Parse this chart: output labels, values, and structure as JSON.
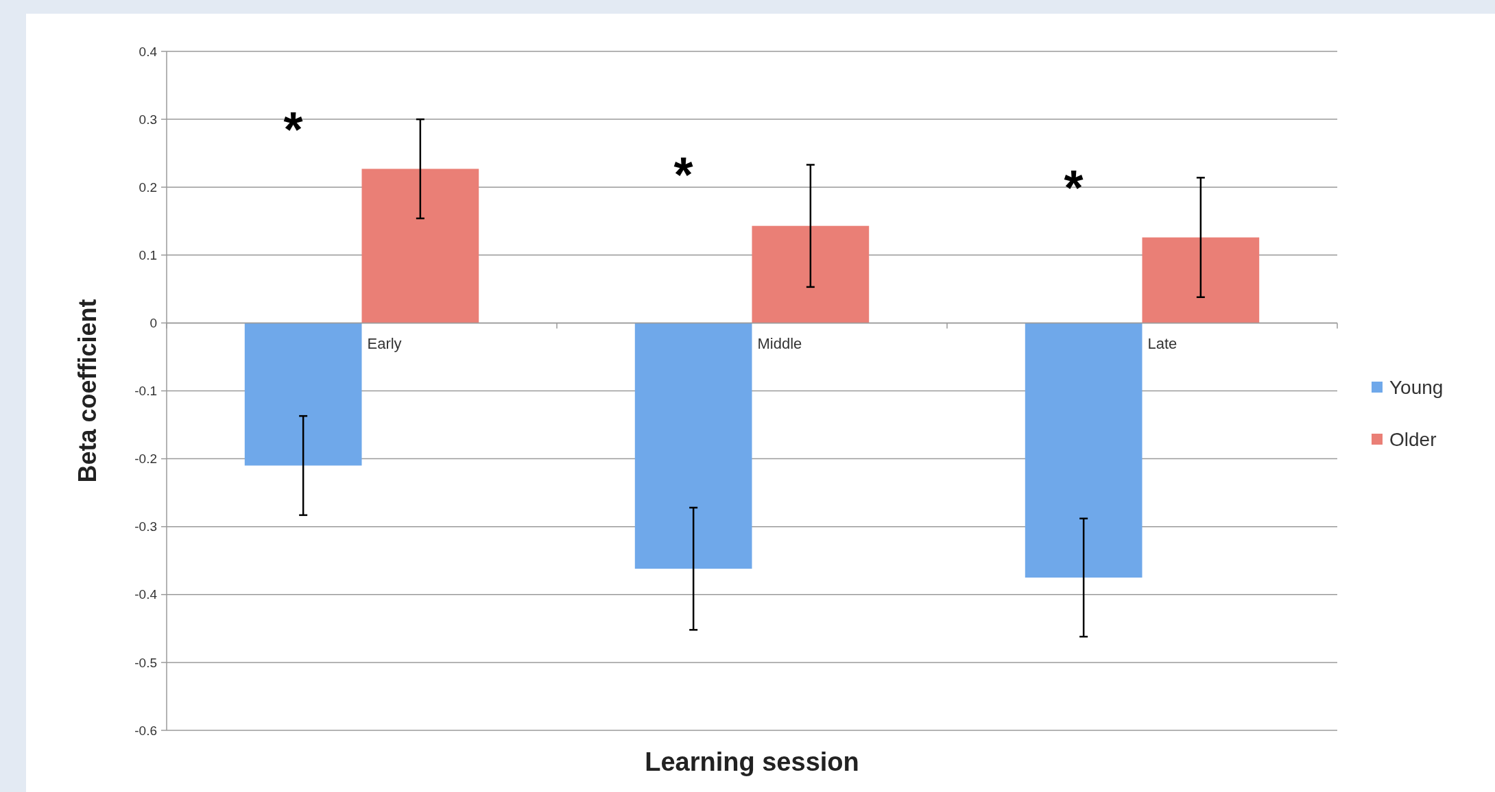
{
  "chart_data": {
    "type": "bar",
    "xlabel": "Learning session",
    "ylabel": "Beta coefficient",
    "categories": [
      "Early",
      "Middle",
      "Late"
    ],
    "series": [
      {
        "name": "Young",
        "color": "#6fa8ea",
        "values": [
          -0.21,
          -0.362,
          -0.375
        ],
        "errors": [
          0.073,
          0.09,
          0.087
        ]
      },
      {
        "name": "Older",
        "color": "#ea7f76",
        "values": [
          0.227,
          0.143,
          0.126
        ],
        "errors": [
          0.073,
          0.09,
          0.088
        ]
      }
    ],
    "ylim": [
      -0.6,
      0.4
    ],
    "yticks": [
      -0.6,
      -0.5,
      -0.4,
      -0.3,
      -0.2,
      -0.1,
      0,
      0.1,
      0.2,
      0.3,
      0.4
    ],
    "grid": "y",
    "legend": "right",
    "annotations": [
      "*",
      "*",
      "*"
    ]
  }
}
